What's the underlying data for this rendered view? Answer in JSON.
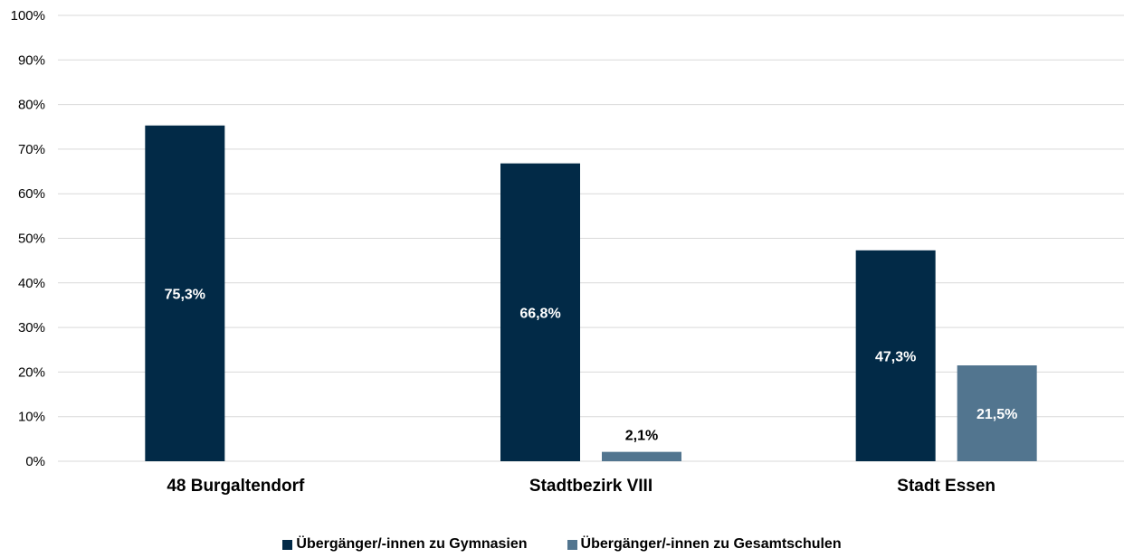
{
  "colors": {
    "gymnasien": "#022a47",
    "gesamtschulen": "#52758f",
    "grid": "#d9d9d9"
  },
  "chart_data": {
    "type": "bar",
    "categories": [
      "48 Burgaltendorf",
      "Stadtbezirk VIII",
      "Stadt Essen"
    ],
    "series": [
      {
        "name": "Übergänger/-innen zu Gymnasien",
        "values": [
          75.3,
          66.8,
          47.3
        ],
        "labels": [
          "75,3%",
          "66,8%",
          "47,3%"
        ]
      },
      {
        "name": "Übergänger/-innen zu Gesamtschulen",
        "values": [
          null,
          2.1,
          21.5
        ],
        "labels": [
          "",
          "2,1%",
          "21,5%"
        ]
      }
    ],
    "yticks": [
      "0%",
      "10%",
      "20%",
      "30%",
      "40%",
      "50%",
      "60%",
      "70%",
      "80%",
      "90%",
      "100%"
    ],
    "ylim": [
      0,
      100
    ],
    "grid": true,
    "legend_position": "bottom"
  }
}
